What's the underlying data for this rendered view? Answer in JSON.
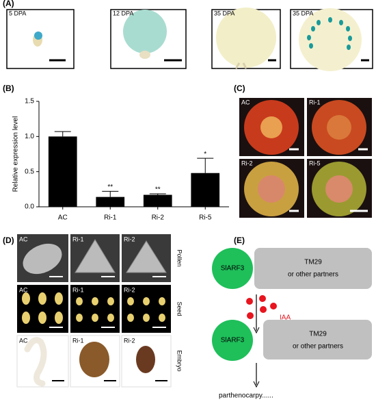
{
  "panels": {
    "A": {
      "label": "(A)",
      "images": [
        "5 DPA",
        "12 DPA",
        "35 DPA",
        "35 DPA"
      ]
    },
    "B": {
      "label": "(B)"
    },
    "C": {
      "label": "(C)",
      "images": [
        "AC",
        "Ri-1",
        "Ri-2",
        "Ri-5"
      ]
    },
    "D": {
      "label": "(D)",
      "columns": [
        "AC",
        "Ri-1",
        "Ri-2"
      ],
      "rows": [
        "Pollen",
        "Seed",
        "Embryo"
      ]
    },
    "E": {
      "label": "(E)",
      "protein": "SlARF3",
      "partner_lines": [
        "TM29",
        "or other partners"
      ],
      "hormone": "IAA",
      "outcome": "parthenocarpy......"
    }
  },
  "chart_data": {
    "type": "bar",
    "ylabel": "Relative expression level",
    "categories": [
      "AC",
      "Ri-1",
      "Ri-2",
      "Ri-5"
    ],
    "values": [
      1.0,
      0.14,
      0.17,
      0.48
    ],
    "errors": [
      0.07,
      0.08,
      0.015,
      0.21
    ],
    "annotations": [
      null,
      "**",
      "**",
      "*"
    ],
    "color": "#000000",
    "ylim": [
      0,
      1.5
    ],
    "yticks": [
      {
        "value": 0,
        "label": "0.0"
      },
      {
        "value": 0.5,
        "label": "0.5"
      },
      {
        "value": 1,
        "label": "1.0"
      },
      {
        "value": 1.5,
        "label": "1.5"
      }
    ]
  }
}
